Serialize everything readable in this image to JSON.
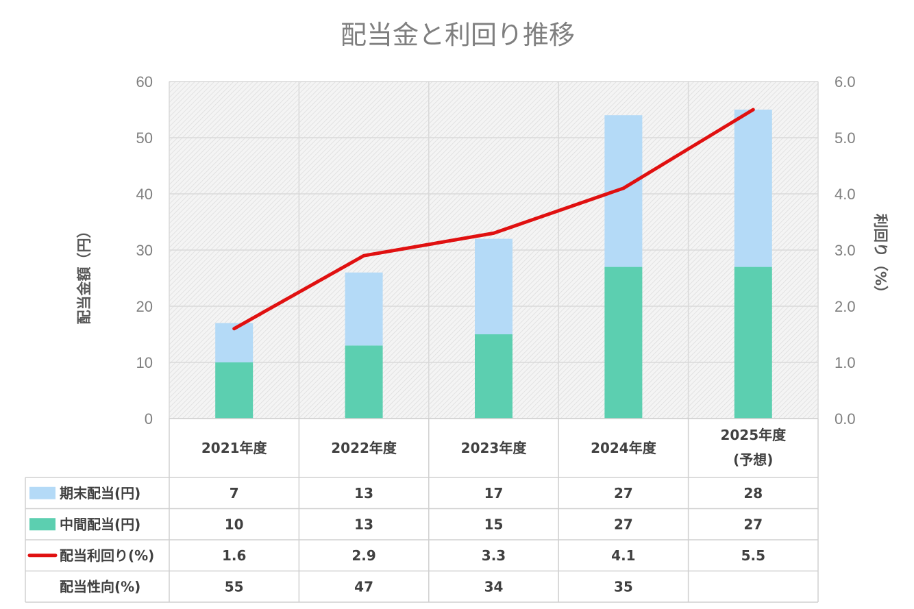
{
  "chart_data": {
    "type": "bar",
    "title": "配当金と利回り推移",
    "ylabel_left": "配当金額（円）",
    "ylabel_right": "利回り（%）",
    "ylim_left": [
      0,
      60
    ],
    "ylim_right": [
      0,
      6.0
    ],
    "yticks_left": [
      "0",
      "10",
      "20",
      "30",
      "40",
      "50",
      "60"
    ],
    "yticks_right": [
      "0.0",
      "1.0",
      "2.0",
      "3.0",
      "4.0",
      "5.0",
      "6.0"
    ],
    "stacked": true,
    "grid": true,
    "categories": [
      {
        "line1": "2021年度",
        "line2": ""
      },
      {
        "line1": "2022年度",
        "line2": ""
      },
      {
        "line1": "2023年度",
        "line2": ""
      },
      {
        "line1": "2024年度",
        "line2": ""
      },
      {
        "line1": "2025年度",
        "line2": "(予想)"
      }
    ],
    "series": [
      {
        "name": "中間配当(円)",
        "type": "bar",
        "axis": "left",
        "color": "#5ccfb0",
        "values": [
          10,
          13,
          15,
          27,
          27
        ]
      },
      {
        "name": "期末配当(円)",
        "type": "bar",
        "axis": "left",
        "color": "#b4daf7",
        "values": [
          7,
          13,
          17,
          27,
          28
        ]
      },
      {
        "name": "配当利回り(%)",
        "type": "line",
        "axis": "right",
        "color": "#e01010",
        "values": [
          1.6,
          2.9,
          3.3,
          4.1,
          5.5
        ]
      }
    ],
    "table": {
      "rows": [
        {
          "label": "期末配当(円)",
          "legend": "bar",
          "color": "#b4daf7",
          "cells": [
            "7",
            "13",
            "17",
            "27",
            "28"
          ]
        },
        {
          "label": "中間配当(円)",
          "legend": "bar",
          "color": "#5ccfb0",
          "cells": [
            "10",
            "13",
            "15",
            "27",
            "27"
          ]
        },
        {
          "label": "配当利回り(%)",
          "legend": "line",
          "color": "#e01010",
          "cells": [
            "1.6",
            "2.9",
            "3.3",
            "4.1",
            "5.5"
          ]
        },
        {
          "label": "配当性向(%)",
          "legend": "none",
          "color": "",
          "cells": [
            "55",
            "47",
            "34",
            "35",
            ""
          ]
        }
      ]
    }
  }
}
